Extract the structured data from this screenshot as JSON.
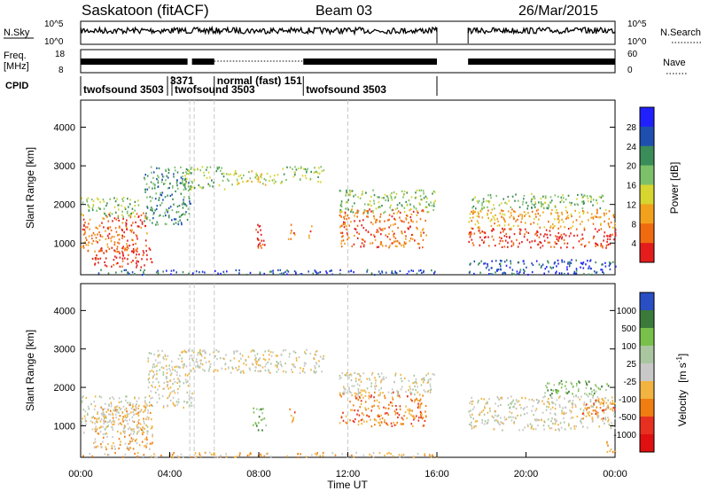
{
  "chart_data": [
    {
      "type": "line",
      "title": "Saskatoon (fitACF)",
      "beam": "Beam 03",
      "date": "26/Mar/2015",
      "left_label": "N.Sky",
      "left_ticks": [
        "10^5",
        "10^0"
      ],
      "right_label": "N.Search",
      "right_ticks": [
        "10^5",
        "10^0"
      ],
      "gap_hours": [
        16.0,
        17.4
      ]
    },
    {
      "type": "line",
      "left_label_1": "Freq.",
      "left_label_2": "[MHz]",
      "left_ticks": [
        "18",
        "8"
      ],
      "right_label": "Nave",
      "right_ticks": [
        "60",
        "0"
      ],
      "dotted_span_hours": [
        6.0,
        10.0
      ]
    },
    {
      "type": "table",
      "row_label": "CPID",
      "segments": [
        {
          "label": "twofsound 3503",
          "start": 0.0,
          "end": 3.9
        },
        {
          "label": "3371",
          "start": 3.9,
          "end": 4.1
        },
        {
          "label": "twofsound 3503",
          "start": 4.1,
          "end": 6.0
        },
        {
          "label": "normal (fast) 151",
          "start": 6.0,
          "end": 10.0
        },
        {
          "label": "twofsound 3503",
          "start": 10.0,
          "end": 16.0
        }
      ]
    },
    {
      "type": "heatmap",
      "ylabel": "Slant Range [km]",
      "yticks": [
        1000,
        2000,
        3000,
        4000
      ],
      "ylim": [
        180,
        4700
      ],
      "xlim": [
        0,
        24
      ],
      "colorbar_label": "Power [dB]",
      "colorbar_ticks": [
        "4",
        "8",
        "12",
        "16",
        "20",
        "24",
        "28"
      ],
      "colorbar_colors": [
        "#2020ff",
        "#1e4fb0",
        "#3a8c58",
        "#7cc06a",
        "#d7d530",
        "#f2a11c",
        "#f06a10",
        "#e41c1c"
      ],
      "regions": [
        {
          "h0": 0.0,
          "h1": 3.0,
          "r0": 800,
          "r1": 1800,
          "level": 6
        },
        {
          "h0": 0.5,
          "h1": 3.2,
          "r0": 400,
          "r1": 900,
          "level": 7
        },
        {
          "h0": 0.0,
          "h1": 2.6,
          "r0": 1700,
          "r1": 2200,
          "level": 3
        },
        {
          "h0": 2.8,
          "h1": 5.0,
          "r0": 1500,
          "r1": 3000,
          "level": 2
        },
        {
          "h0": 4.5,
          "h1": 6.5,
          "r0": 2400,
          "r1": 3000,
          "level": 3
        },
        {
          "h0": 6.5,
          "h1": 9.0,
          "r0": 2500,
          "r1": 2900,
          "level": 4
        },
        {
          "h0": 9.0,
          "h1": 10.9,
          "r0": 2600,
          "r1": 3000,
          "level": 3
        },
        {
          "h0": 7.7,
          "h1": 8.3,
          "r0": 900,
          "r1": 1500,
          "level": 7
        },
        {
          "h0": 9.3,
          "h1": 9.6,
          "r0": 1100,
          "r1": 1500,
          "level": 6
        },
        {
          "h0": 10.2,
          "h1": 10.4,
          "r0": 1100,
          "r1": 1500,
          "level": 6
        },
        {
          "h0": 11.6,
          "h1": 15.5,
          "r0": 900,
          "r1": 1900,
          "level": 6
        },
        {
          "h0": 11.6,
          "h1": 15.9,
          "r0": 1800,
          "r1": 2400,
          "level": 3
        },
        {
          "h0": 17.4,
          "h1": 24.0,
          "r0": 900,
          "r1": 1400,
          "level": 7
        },
        {
          "h0": 17.4,
          "h1": 24.0,
          "r0": 1400,
          "r1": 1900,
          "level": 5
        },
        {
          "h0": 17.4,
          "h1": 23.5,
          "r0": 1900,
          "r1": 2300,
          "level": 3
        },
        {
          "h0": 0.0,
          "h1": 16.0,
          "r0": 200,
          "r1": 330,
          "level": 1
        },
        {
          "h0": 17.4,
          "h1": 24.0,
          "r0": 200,
          "r1": 600,
          "level": 1
        }
      ]
    },
    {
      "type": "heatmap",
      "ylabel": "Slant Range [km]",
      "yticks": [
        1000,
        2000,
        3000,
        4000
      ],
      "ylim": [
        180,
        4700
      ],
      "xlim": [
        0,
        24
      ],
      "xticks": [
        "00:00",
        "04:00",
        "08:00",
        "12:00",
        "16:00",
        "20:00",
        "00:00"
      ],
      "xlabel": "Time UT",
      "colorbar_label": "Velocity",
      "colorbar_unit": "[m s",
      "colorbar_unit_exp": "-1",
      "colorbar_ticks": [
        "1000",
        "500",
        "100",
        "25",
        "-25",
        "-100",
        "-500",
        "-1000"
      ],
      "colorbar_colors": [
        "#2a4fc4",
        "#3b7a3a",
        "#78c04a",
        "#a9c6a0",
        "#c8c8c8",
        "#f2b340",
        "#f07d10",
        "#e83020",
        "#e01010"
      ],
      "regions": [
        {
          "h0": 0.0,
          "h1": 3.0,
          "r0": 800,
          "r1": 1800,
          "level": 4
        },
        {
          "h0": 0.6,
          "h1": 3.2,
          "r0": 900,
          "r1": 1600,
          "level": 5
        },
        {
          "h0": 0.5,
          "h1": 3.2,
          "r0": 400,
          "r1": 900,
          "level": 5
        },
        {
          "h0": 3.0,
          "h1": 5.0,
          "r0": 1500,
          "r1": 3000,
          "level": 4
        },
        {
          "h0": 4.5,
          "h1": 10.9,
          "r0": 2400,
          "r1": 3000,
          "level": 4
        },
        {
          "h0": 7.7,
          "h1": 8.3,
          "r0": 900,
          "r1": 1500,
          "level": 2
        },
        {
          "h0": 9.3,
          "h1": 9.6,
          "r0": 1100,
          "r1": 1500,
          "level": 6
        },
        {
          "h0": 11.6,
          "h1": 15.5,
          "r0": 1000,
          "r1": 1900,
          "level": 6
        },
        {
          "h0": 11.6,
          "h1": 15.9,
          "r0": 1800,
          "r1": 2400,
          "level": 4
        },
        {
          "h0": 17.4,
          "h1": 24.0,
          "r0": 900,
          "r1": 1800,
          "level": 4
        },
        {
          "h0": 22.5,
          "h1": 24.0,
          "r0": 1200,
          "r1": 1700,
          "level": 6
        },
        {
          "h0": 20.8,
          "h1": 23.8,
          "r0": 1800,
          "r1": 2200,
          "level": 2
        },
        {
          "h0": 0.0,
          "h1": 16.0,
          "r0": 200,
          "r1": 330,
          "level": 5
        },
        {
          "h0": 23.5,
          "h1": 24.0,
          "r0": 300,
          "r1": 600,
          "level": 6
        }
      ]
    }
  ]
}
